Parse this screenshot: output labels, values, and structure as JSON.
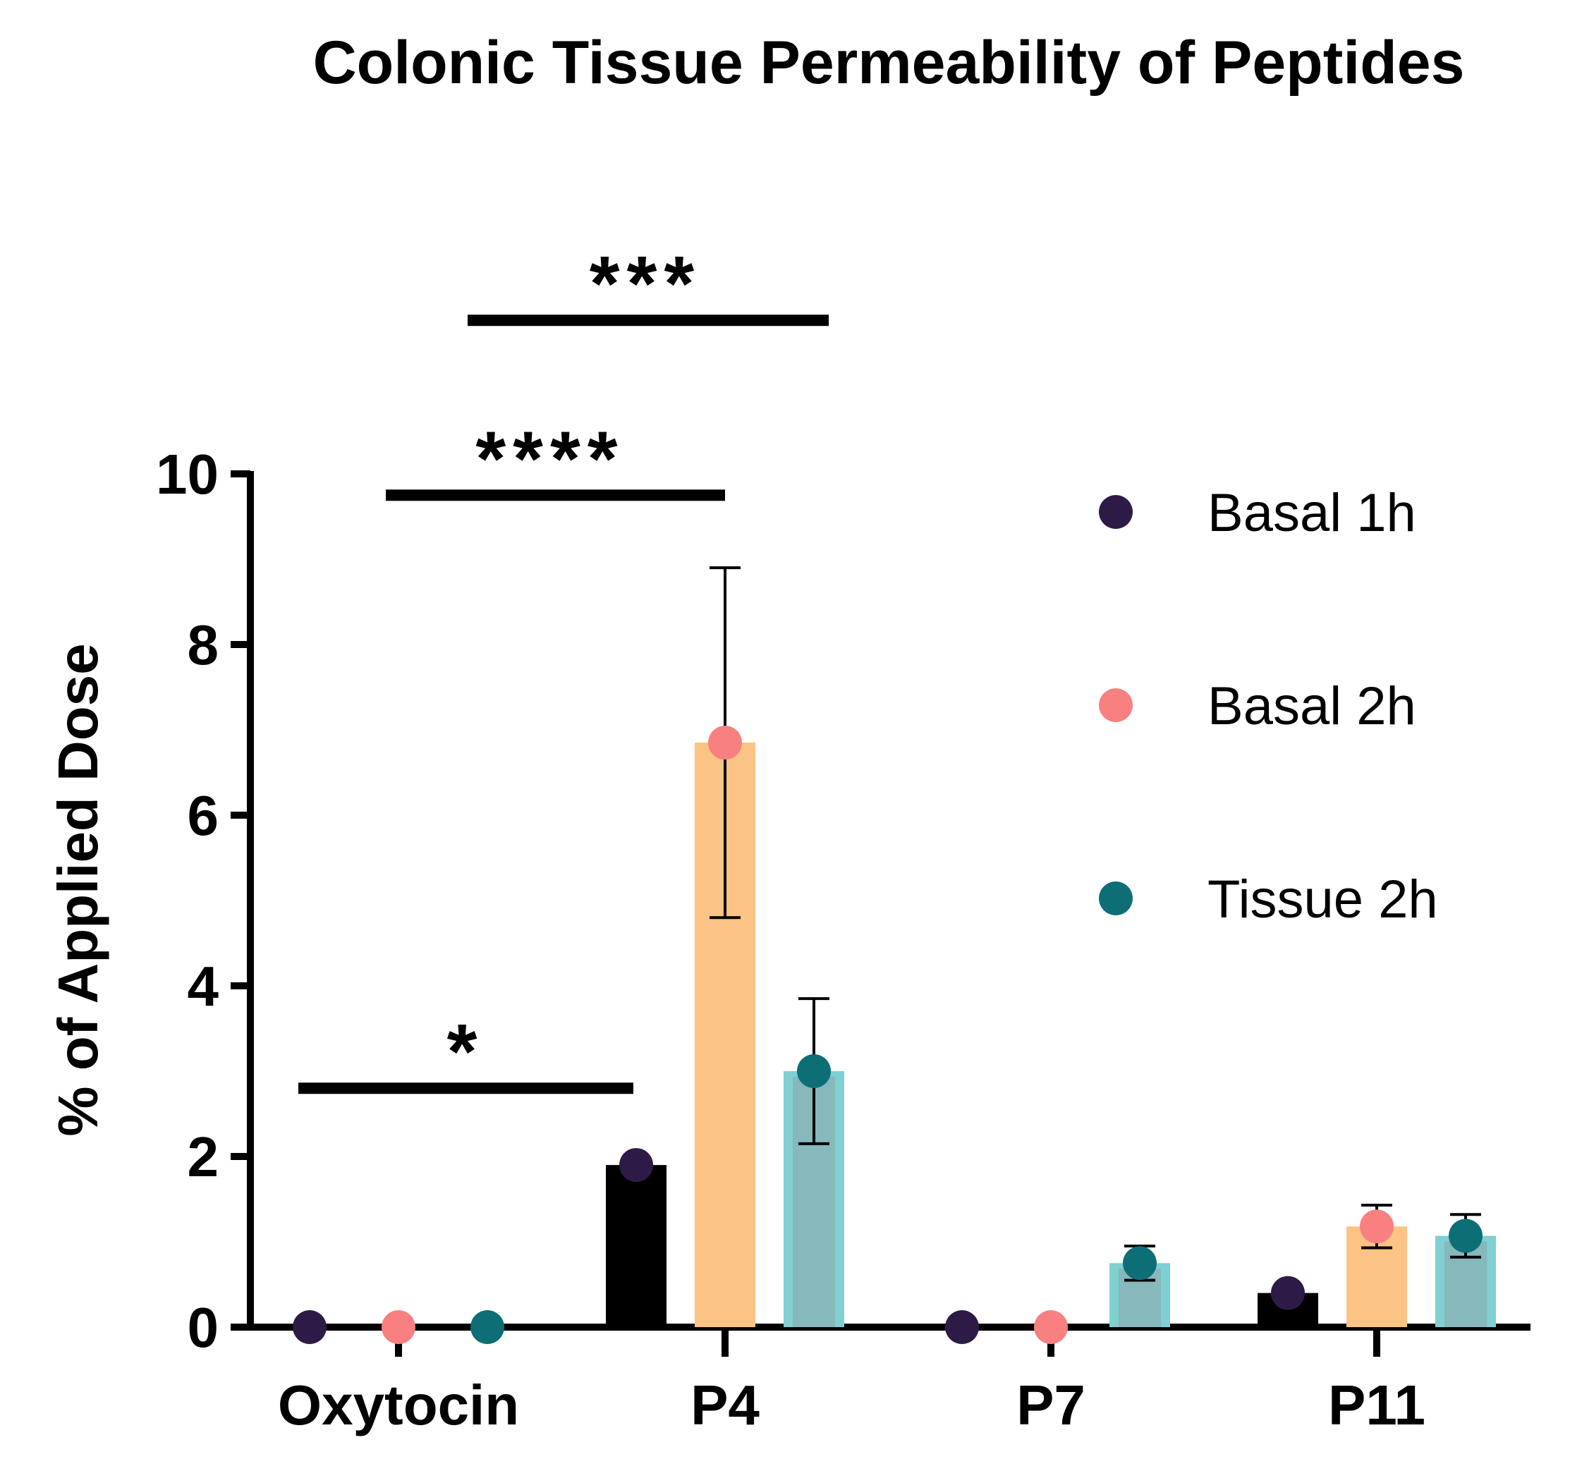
{
  "chart_data": {
    "type": "bar",
    "title": "Colonic Tissue Permeability of Peptides",
    "xlabel": "",
    "ylabel": "% of Applied Dose",
    "ylim": [
      0,
      10
    ],
    "yticks": [
      0,
      2,
      4,
      6,
      8,
      10
    ],
    "categories": [
      "Oxytocin",
      "P4",
      "P7",
      "P11"
    ],
    "series": [
      {
        "name": "Basal 1h",
        "bar_color": "#000000",
        "marker_color": "#2E1A47",
        "values": [
          0,
          1.9,
          0,
          0.4
        ],
        "errors": [
          null,
          null,
          null,
          null
        ]
      },
      {
        "name": "Basal 2h",
        "bar_color": "#FBC384",
        "marker_color": "#F98080",
        "values": [
          0,
          6.85,
          0,
          1.18
        ],
        "errors": [
          null,
          2.05,
          null,
          0.25
        ]
      },
      {
        "name": "Tissue 2h",
        "bar_color": "#7FCFD3",
        "bar_inner_color": "#86B8BC",
        "marker_color": "#0D6E76",
        "values": [
          0,
          3.0,
          0.75,
          1.07
        ],
        "errors": [
          null,
          0.85,
          0.2,
          0.25
        ]
      }
    ],
    "legend": {
      "position": "top-right",
      "entries": [
        "Basal 1h",
        "Basal 2h",
        "Tissue 2h"
      ]
    },
    "significance": [
      {
        "label": "*",
        "from_category": 0,
        "to_category": 1,
        "level": 2.8
      },
      {
        "label": "****",
        "from_category": 0,
        "to_category": 1,
        "level": 9.75
      },
      {
        "label": "***",
        "from_category": 0,
        "to_category": 1,
        "level": 11.8
      }
    ]
  }
}
